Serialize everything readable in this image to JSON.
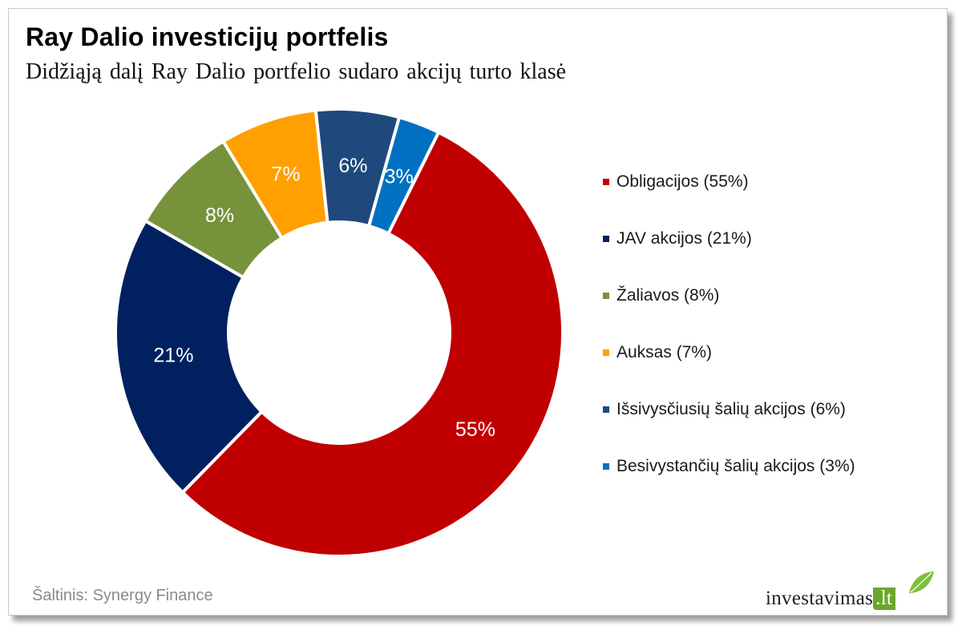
{
  "title": "Ray Dalio investicijų portfelis",
  "subtitle": "Didžiąją dalį Ray Dalio portfelio sudaro akcijų turto klasė",
  "source": "Šaltinis: Synergy Finance",
  "brand": {
    "name": "investavimas",
    "tld": ".lt",
    "accent": "#6aa72c"
  },
  "chart_data": {
    "type": "pie",
    "variant": "donut",
    "slices": [
      {
        "label": "55%",
        "value": 55,
        "color": "#c00000"
      },
      {
        "label": "21%",
        "value": 21,
        "color": "#002060"
      },
      {
        "label": "8%",
        "value": 8,
        "color": "#76933c"
      },
      {
        "label": "7%",
        "value": 7,
        "color": "#ffa000"
      },
      {
        "label": "6%",
        "value": 6,
        "color": "#1f497d"
      },
      {
        "label": "3%",
        "value": 3,
        "color": "#0070c0"
      }
    ],
    "legend_position": "right",
    "legend": [
      {
        "label": "Obligacijos (55%)",
        "color": "#c00000"
      },
      {
        "label": "JAV akcijos (21%)",
        "color": "#002060"
      },
      {
        "label": "Žaliavos (8%)",
        "color": "#76933c"
      },
      {
        "label": "Auksas (7%)",
        "color": "#ffa000"
      },
      {
        "label": "Išsivysčiusių šalių akcijos (6%)",
        "color": "#1f497d"
      },
      {
        "label": "Besivystančių šalių akcijos (3%)",
        "color": "#0070c0"
      }
    ]
  }
}
